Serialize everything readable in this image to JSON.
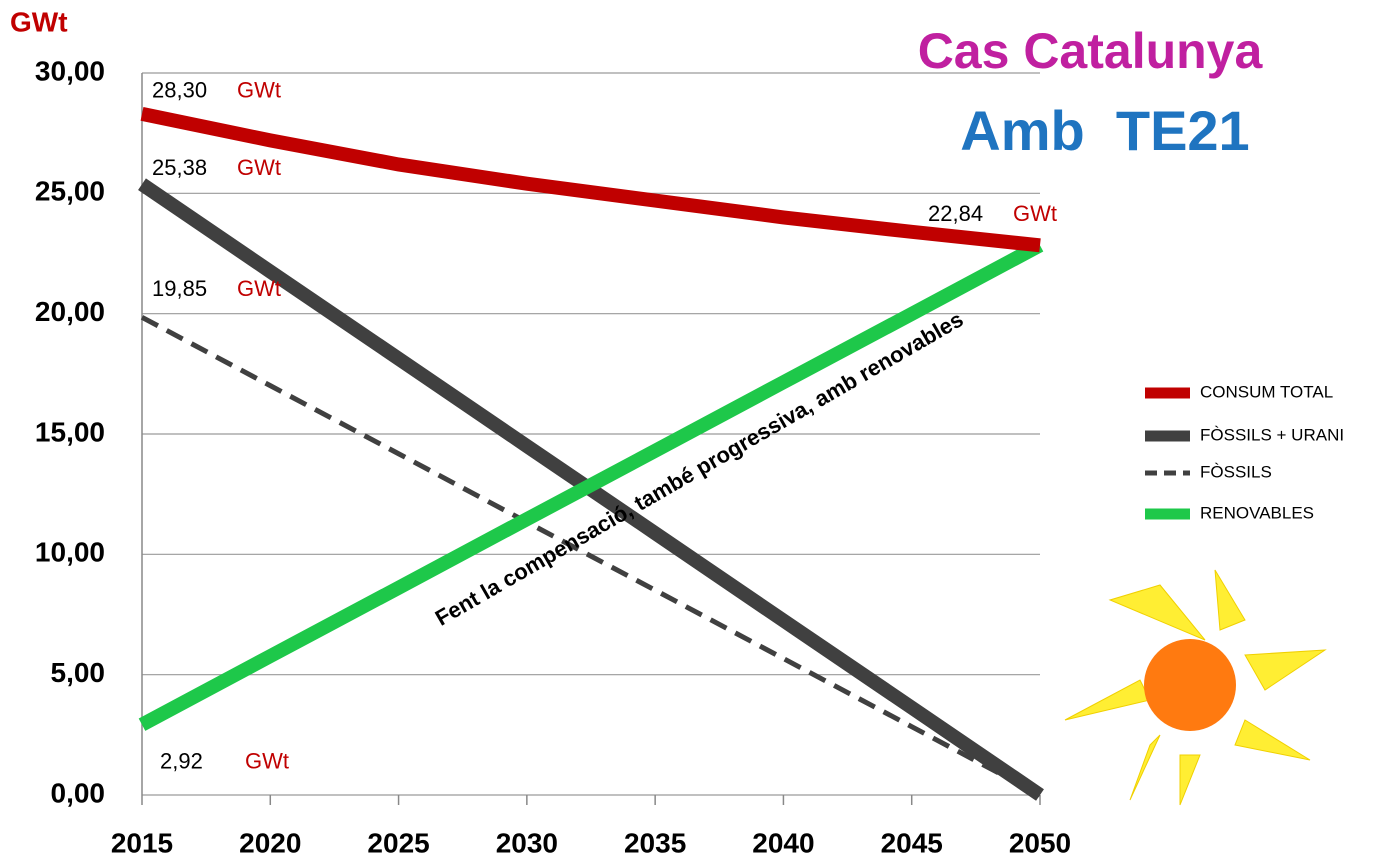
{
  "chart_data": {
    "type": "line",
    "title": "Cas Catalunya",
    "subtitle": "Amb  TE21",
    "y_label": "GWt",
    "annotation": "Fent la compensació, també progressiva, amb renovables",
    "x": [
      2015,
      2020,
      2025,
      2030,
      2035,
      2040,
      2045,
      2050
    ],
    "xlim": [
      2015,
      2050
    ],
    "xticks": [
      2015,
      2020,
      2025,
      2030,
      2035,
      2040,
      2045,
      2050
    ],
    "ylim": [
      0,
      30
    ],
    "yticks": [
      {
        "value": 0,
        "label": "0,00"
      },
      {
        "value": 5,
        "label": "5,00"
      },
      {
        "value": 10,
        "label": "10,00"
      },
      {
        "value": 15,
        "label": "15,00"
      },
      {
        "value": 20,
        "label": "20,00"
      },
      {
        "value": 25,
        "label": "25,00"
      },
      {
        "value": 30,
        "label": "30,00"
      }
    ],
    "grid": true,
    "legend": "right",
    "series": [
      {
        "name": "CONSUM TOTAL",
        "color": "#c00000",
        "dash": false,
        "values": [
          28.3,
          27.2,
          26.2,
          25.4,
          24.7,
          24.0,
          23.4,
          22.84
        ],
        "value_labels": [
          "28,30",
          null,
          null,
          null,
          null,
          null,
          null,
          "22,84"
        ]
      },
      {
        "name": "FÒSSILS + URANI",
        "color": "#404040",
        "dash": false,
        "values": [
          25.38,
          21.75,
          18.13,
          14.5,
          10.88,
          7.25,
          3.63,
          0
        ],
        "value_labels": [
          "25,38",
          null,
          null,
          null,
          null,
          null,
          null,
          null
        ]
      },
      {
        "name": "FÒSSILS",
        "color": "#404040",
        "dash": true,
        "values": [
          19.85,
          17.01,
          14.18,
          11.34,
          8.51,
          5.67,
          2.84,
          0
        ],
        "value_labels": [
          "19,85",
          null,
          null,
          null,
          null,
          null,
          null,
          null
        ]
      },
      {
        "name": "RENOVABLES",
        "color": "#1ec84a",
        "dash": false,
        "values": [
          2.92,
          5.77,
          8.61,
          11.46,
          14.3,
          17.15,
          19.99,
          22.84
        ],
        "value_labels": [
          "2,92",
          null,
          null,
          null,
          null,
          null,
          null,
          null
        ]
      }
    ]
  }
}
